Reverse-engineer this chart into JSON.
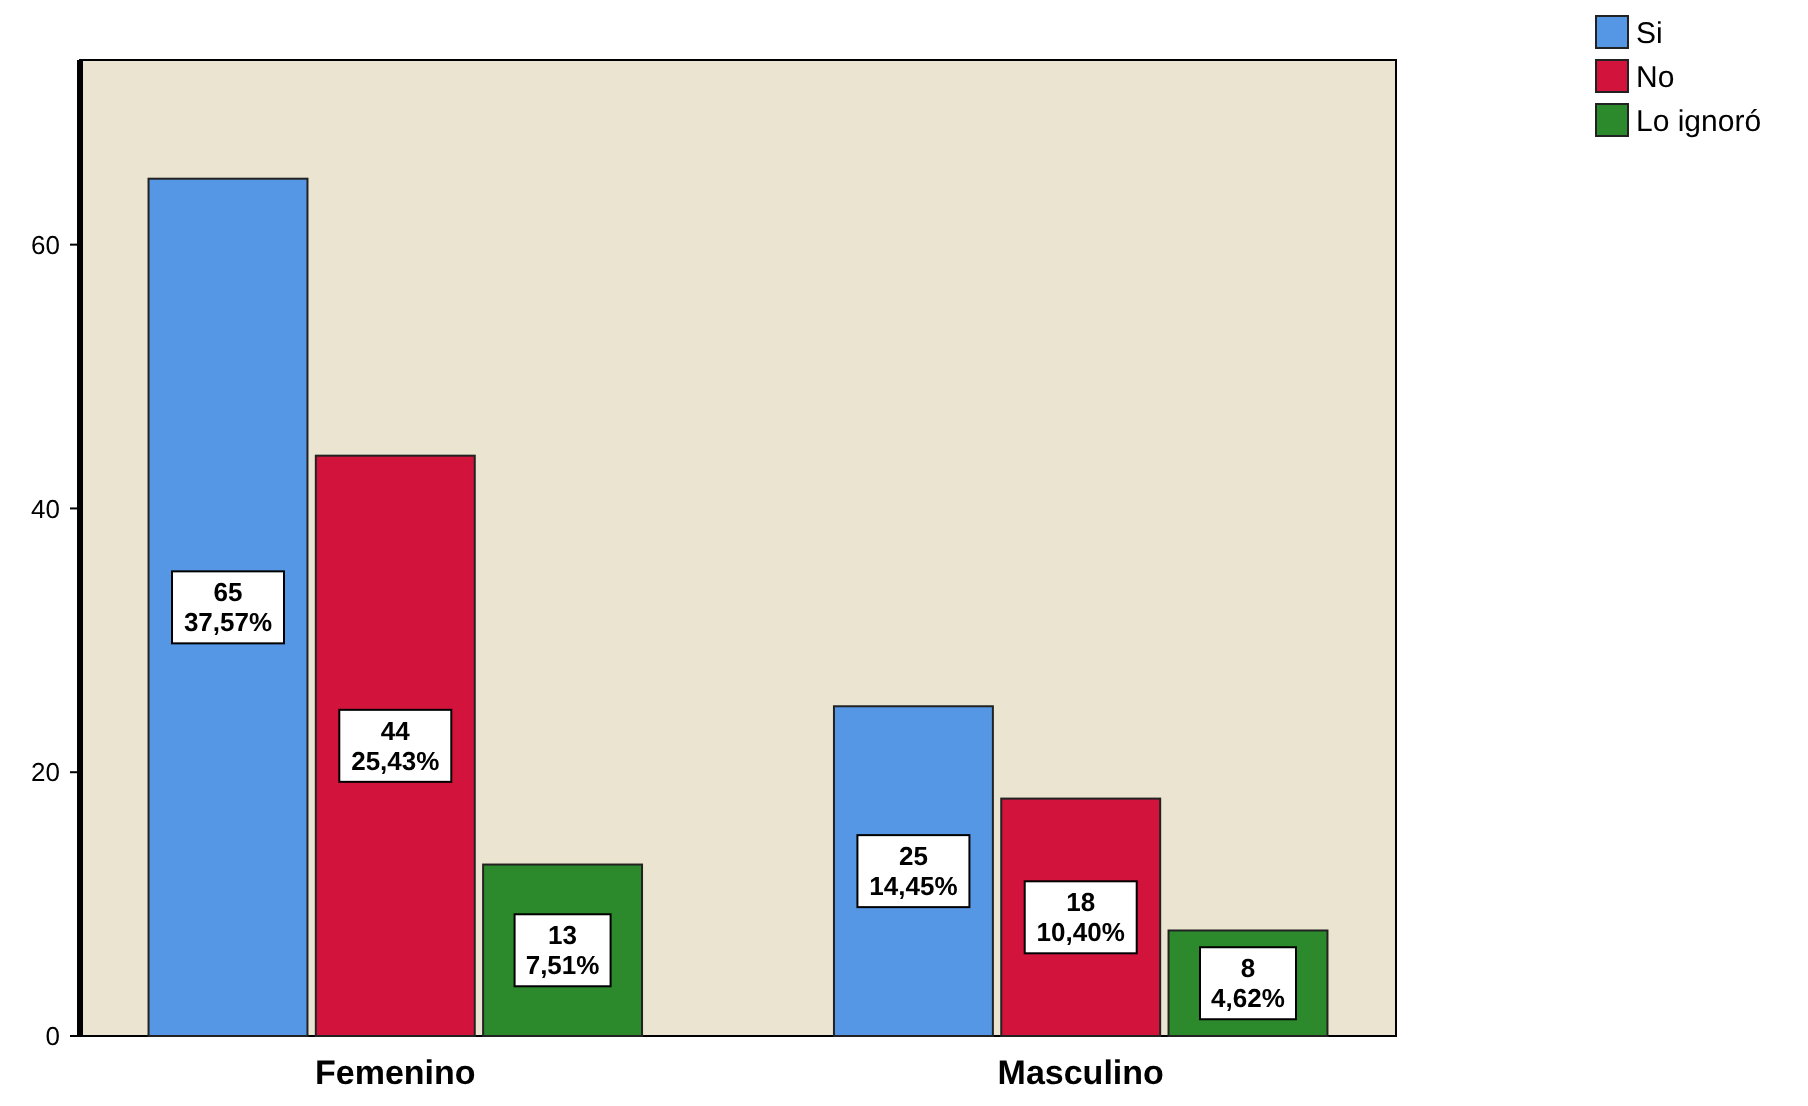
{
  "chart_data": {
    "type": "bar",
    "categories": [
      "Femenino",
      "Masculino"
    ],
    "series": [
      {
        "name": "Si",
        "color": "#5597e5",
        "values": [
          65,
          25
        ],
        "value_labels": [
          "65\n37,57%",
          "25\n14,45%"
        ]
      },
      {
        "name": "No",
        "color": "#d2143c",
        "values": [
          44,
          18
        ],
        "value_labels": [
          "44\n25,43%",
          "18\n10,40%"
        ]
      },
      {
        "name": "Lo ignoró",
        "color": "#2c8a2c",
        "values": [
          13,
          8
        ],
        "value_labels": [
          "13\n7,51%",
          "8\n4,62%"
        ]
      }
    ],
    "ylim": [
      0,
      74
    ],
    "yticks": [
      0,
      20,
      40,
      60
    ],
    "grid": false,
    "legend": "top right"
  }
}
